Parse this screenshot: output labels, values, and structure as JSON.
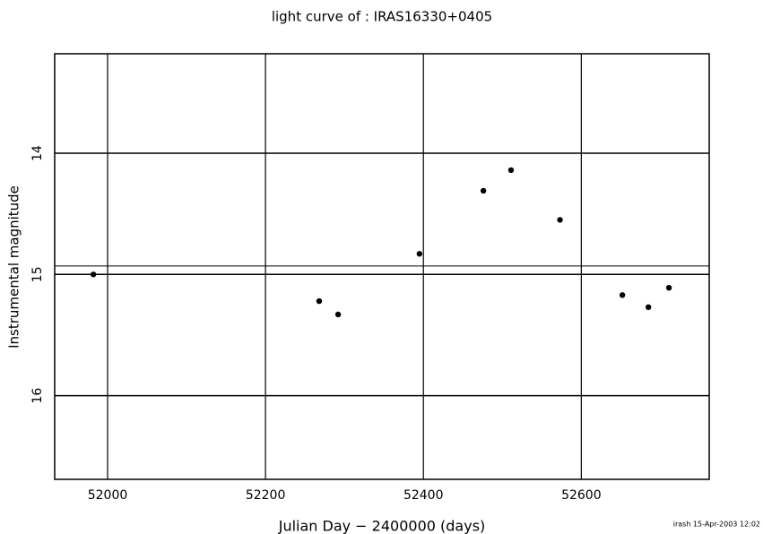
{
  "chart_data": {
    "type": "scatter",
    "title": "light curve of : IRAS16330+0405",
    "x_label": "Julian Day − 2400000 (days)",
    "y_label": "Instrumental magnitude",
    "footer": "irash 15-Apr-2003 12:02",
    "x": [
      51982,
      52268,
      52292,
      52395,
      52476,
      52511,
      52573,
      52652,
      52685,
      52711
    ],
    "values": [
      15.0,
      15.22,
      15.33,
      14.83,
      14.31,
      14.14,
      14.55,
      15.17,
      15.27,
      15.11
    ],
    "color": "#000000",
    "xlim": [
      51933,
      52762
    ],
    "xticks": [
      52000,
      52200,
      52400,
      52600
    ],
    "ylim": [
      16.69,
      13.18
    ],
    "yticks": [
      14,
      15,
      16
    ],
    "reference_line": 14.93,
    "grid": true
  }
}
